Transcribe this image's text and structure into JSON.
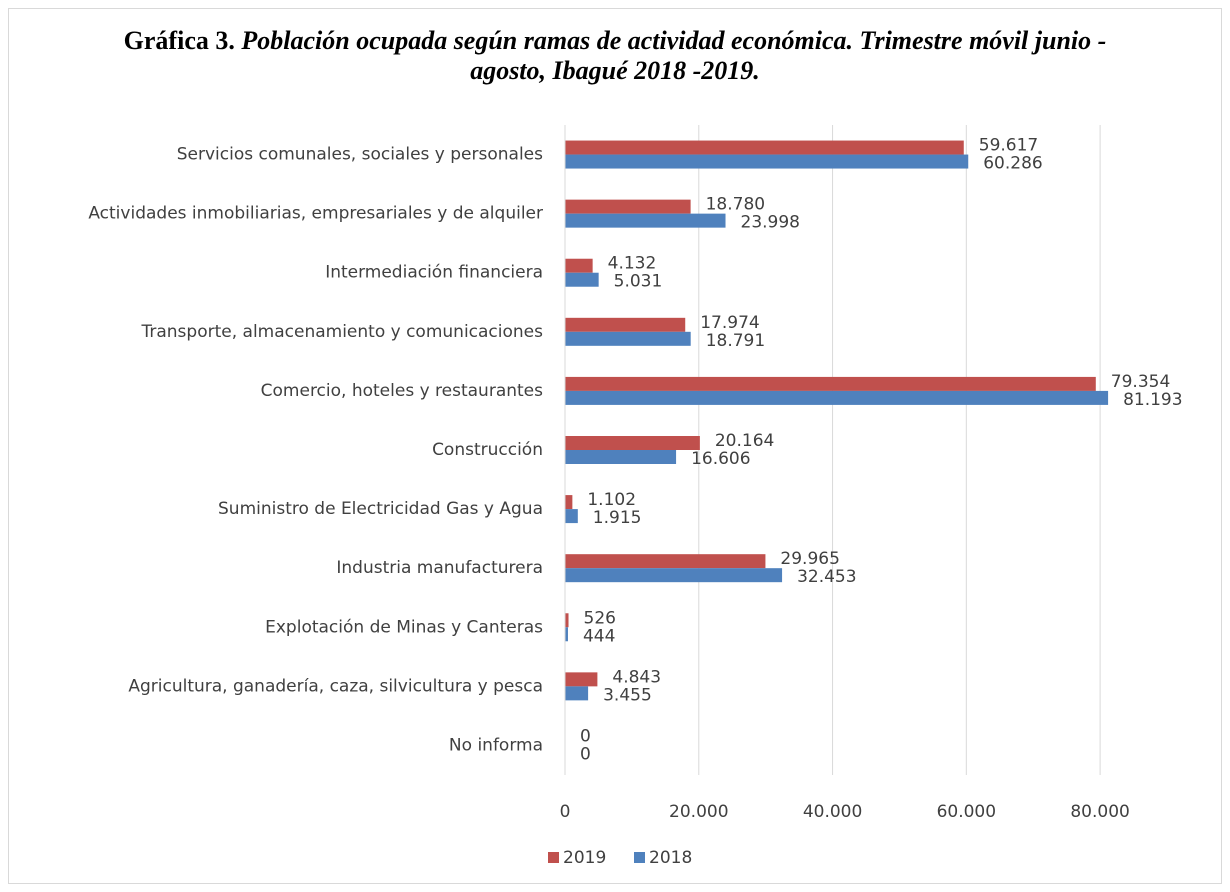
{
  "chart_data": {
    "type": "bar",
    "orientation": "horizontal",
    "title": "Gráfica 3.",
    "subtitle": "Población ocupada según ramas de actividad económica. Trimestre móvil junio - agosto, Ibagué 2018 -2019.",
    "categories": [
      "Servicios comunales, sociales y personales",
      "Actividades inmobiliarias, empresariales y de alquiler",
      "Intermediación financiera",
      "Transporte, almacenamiento y comunicaciones",
      "Comercio, hoteles y restaurantes",
      "Construcción",
      "Suministro de Electricidad Gas y Agua",
      "Industria manufacturera",
      "Explotación de Minas y Canteras",
      "Agricultura, ganadería, caza, silvicultura y pesca",
      "No informa"
    ],
    "series": [
      {
        "name": "2019",
        "color": "#c0504d",
        "values": [
          59617,
          18780,
          4132,
          17974,
          79354,
          20164,
          1102,
          29965,
          526,
          4843,
          0
        ],
        "value_labels": [
          "59.617",
          "18.780",
          "4.132",
          "17.974",
          "79.354",
          "20.164",
          "1.102",
          "29.965",
          "526",
          "4.843",
          "0"
        ]
      },
      {
        "name": "2018",
        "color": "#4f81bd",
        "values": [
          60286,
          23998,
          5031,
          18791,
          81193,
          16606,
          1915,
          32453,
          444,
          3455,
          0
        ],
        "value_labels": [
          "60.286",
          "23.998",
          "5.031",
          "18.791",
          "81.193",
          "16.606",
          "1.915",
          "32.453",
          "444",
          "3.455",
          "0"
        ]
      }
    ],
    "xlim": [
      0,
      90000
    ],
    "xticks": [
      0,
      {
        "value": 20000,
        "label": "20.000"
      },
      {
        "value": 40000,
        "label": "40.000"
      },
      {
        "value": 60000,
        "label": "60.000"
      },
      {
        "value": 80000,
        "label": "80.000"
      }
    ],
    "grid": true,
    "legend": "bottom"
  }
}
